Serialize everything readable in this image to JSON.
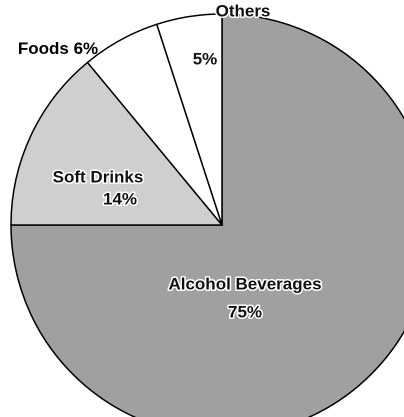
{
  "chart_data": {
    "type": "pie",
    "categories": [
      "Alcohol Beverages",
      "Soft Drinks",
      "Foods",
      "Others"
    ],
    "values": [
      75,
      14,
      6,
      5
    ],
    "value_labels": [
      "75%",
      "14%",
      "6%",
      "5%"
    ],
    "colors": [
      "#a0a0a0",
      "#cfcfcf",
      "#ffffff",
      "#ffffff"
    ],
    "start_angle": 90,
    "direction": "clockwise"
  }
}
